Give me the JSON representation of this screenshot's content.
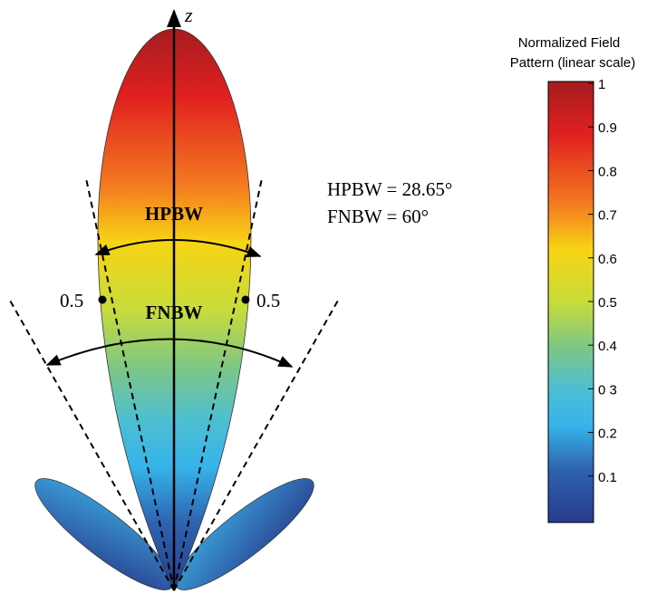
{
  "axis_label": "z",
  "beam_labels": {
    "hpbw": "HPBW",
    "fnbw": "FNBW"
  },
  "point_labels": [
    "0.5",
    "0.5"
  ],
  "legend_text": [
    "HPBW = 28.65°",
    "FNBW = 60°"
  ],
  "colorbar": {
    "title": [
      "Normalized Field",
      "Pattern (linear scale)"
    ],
    "ticks": [
      "1",
      "0.9",
      "0.8",
      "0.7",
      "0.6",
      "0.5",
      "0.4",
      "0 3",
      "0.2",
      "0.1"
    ]
  }
}
